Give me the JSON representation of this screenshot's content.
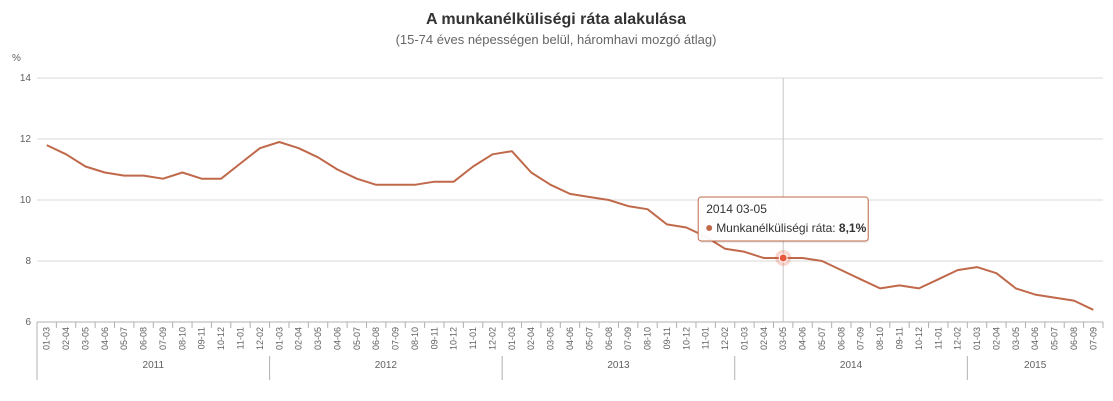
{
  "chart_data": {
    "type": "line",
    "title": "A munkanélküliségi ráta alakulása",
    "subtitle": "(15-74 éves népességen belül, háromhavi mozgó átlag)",
    "ylabel": "%",
    "ylim": [
      6,
      14
    ],
    "yticks": [
      "6",
      "8",
      "10",
      "12",
      "14"
    ],
    "grid": true,
    "colors": {
      "line": "#c0694a",
      "grid": "#d8d8d8",
      "axis": "#b0b0b0",
      "highlight": "#e8573b"
    },
    "categories": [
      "01-03",
      "02-04",
      "03-05",
      "04-06",
      "05-07",
      "06-08",
      "07-09",
      "08-10",
      "09-11",
      "10-12",
      "11-01",
      "12-02",
      "01-03",
      "02-04",
      "03-05",
      "04-06",
      "05-07",
      "06-08",
      "07-09",
      "08-10",
      "09-11",
      "10-12",
      "11-01",
      "12-02",
      "01-03",
      "02-04",
      "03-05",
      "04-06",
      "05-07",
      "06-08",
      "07-09",
      "08-10",
      "09-11",
      "10-12",
      "11-01",
      "12-02",
      "01-03",
      "02-04",
      "03-05",
      "04-06",
      "05-07",
      "06-08",
      "07-09",
      "08-10",
      "09-11",
      "10-12",
      "11-01",
      "12-02",
      "01-03",
      "02-04",
      "03-05",
      "04-06",
      "05-07",
      "06-08",
      "07-09"
    ],
    "years": [
      {
        "label": "2011",
        "start": 0,
        "count": 12
      },
      {
        "label": "2012",
        "start": 12,
        "count": 12
      },
      {
        "label": "2013",
        "start": 24,
        "count": 12
      },
      {
        "label": "2014",
        "start": 36,
        "count": 12
      },
      {
        "label": "2015",
        "start": 48,
        "count": 7
      }
    ],
    "series": [
      {
        "name": "Munkanélküliségi ráta",
        "values": [
          11.8,
          11.5,
          11.1,
          10.9,
          10.8,
          10.8,
          10.7,
          10.9,
          10.7,
          10.7,
          11.2,
          11.7,
          11.9,
          11.7,
          11.4,
          11.0,
          10.7,
          10.5,
          10.5,
          10.5,
          10.6,
          10.6,
          11.1,
          11.5,
          11.6,
          10.9,
          10.5,
          10.2,
          10.1,
          10.0,
          9.8,
          9.7,
          9.2,
          9.1,
          8.8,
          8.4,
          8.3,
          8.1,
          8.1,
          8.1,
          8.0,
          7.7,
          7.4,
          7.1,
          7.2,
          7.1,
          7.4,
          7.7,
          7.8,
          7.6,
          7.1,
          6.9,
          6.8,
          6.7,
          6.4
        ]
      }
    ],
    "tooltip": {
      "index": 38,
      "header": "2014 03-05",
      "label": "Munkanélküliségi ráta:",
      "value": "8,1%"
    }
  }
}
